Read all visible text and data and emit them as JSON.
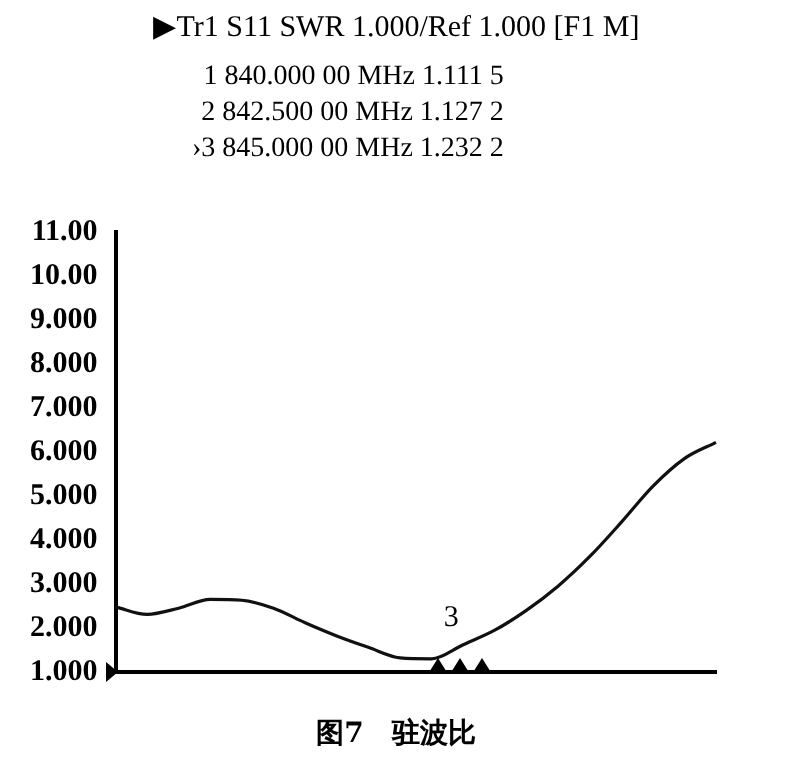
{
  "chart_data": {
    "type": "line",
    "title": "▶Tr1 S11 SWR 1.000/Ref 1.000 [F1 M]",
    "annotations": [
      "1 840.000 00 MHz 1.111 5",
      "2 842.500 00 MHz 1.127 2",
      "›3 845.000 00 MHz 1.232 2",
      "3",
      "图7　驻波比"
    ],
    "categories": [
      null,
      null,
      null,
      null,
      null,
      null,
      null,
      null,
      null,
      null,
      null,
      null,
      null,
      null,
      null,
      null,
      null,
      null,
      null,
      null
    ],
    "series": [
      {
        "color": "#111111",
        "values": [
          2.48,
          2.31,
          2.45,
          2.65,
          2.63,
          2.45,
          2.12,
          1.82,
          1.56,
          1.32,
          1.3,
          1.62,
          1.95,
          2.4,
          2.95,
          3.62,
          4.4,
          5.22,
          5.85,
          6.22
        ]
      }
    ],
    "ylim": [
      1,
      11
    ],
    "yticks": [
      {
        "value": 1,
        "label": "1.000"
      },
      {
        "value": 2,
        "label": "2.000"
      },
      {
        "value": 3,
        "label": "3.000"
      },
      {
        "value": 4,
        "label": "4.000"
      },
      {
        "value": 5,
        "label": "5.000"
      },
      {
        "value": 6,
        "label": "6.000"
      },
      {
        "value": 7,
        "label": "7.000"
      },
      {
        "value": 8,
        "label": "8.000"
      },
      {
        "value": 9,
        "label": "9.000"
      },
      {
        "value": 10,
        "label": "10.00"
      },
      {
        "value": 11,
        "label": "11.00"
      }
    ],
    "grid": false,
    "legend": false,
    "marker": "none",
    "line_style": "solid",
    "tick_labels": "y"
  }
}
